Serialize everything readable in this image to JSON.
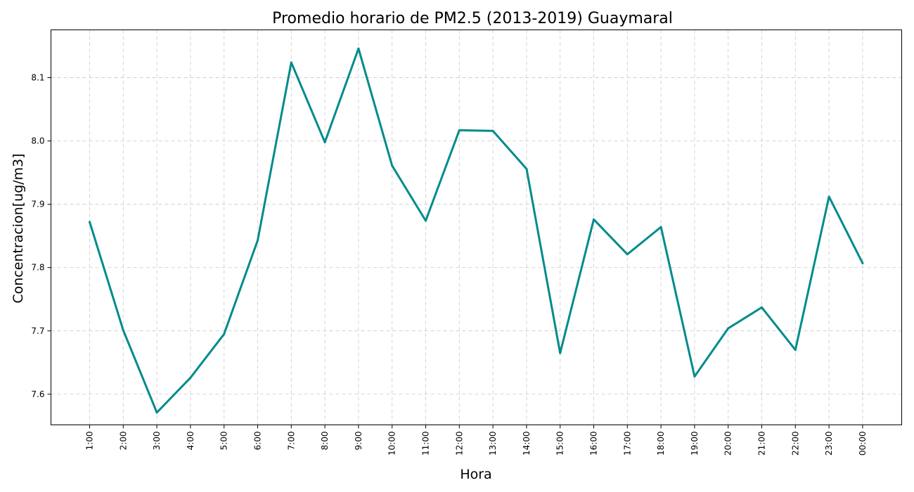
{
  "chart_data": {
    "type": "line",
    "title": "Promedio horario de PM2.5 (2013-2019) Guaymaral",
    "xlabel": "Hora",
    "ylabel": "Concentracion[ug/m3]",
    "categories": [
      "1:00",
      "2:00",
      "3:00",
      "4:00",
      "5:00",
      "6:00",
      "7:00",
      "8:00",
      "9:00",
      "10:00",
      "11:00",
      "12:00",
      "13:00",
      "14:00",
      "15:00",
      "16:00",
      "17:00",
      "18:00",
      "19:00",
      "20:00",
      "21:00",
      "22:00",
      "23:00",
      "00:00"
    ],
    "series": [
      {
        "values": [
          7.872,
          7.701,
          7.571,
          7.626,
          7.695,
          7.843,
          8.124,
          7.998,
          8.146,
          7.961,
          7.874,
          8.017,
          8.016,
          7.956,
          7.665,
          7.876,
          7.821,
          7.864,
          7.628,
          7.704,
          7.737,
          7.67,
          7.912,
          7.807
        ],
        "color": "#008b8b"
      }
    ],
    "ylim": [
      7.5515,
      8.1755
    ],
    "yticks": [
      7.6,
      7.7,
      7.8,
      7.9,
      8.0,
      8.1
    ],
    "ytick_labels": [
      "7.6",
      "7.7",
      "7.8",
      "7.9",
      "8.0",
      "8.1"
    ],
    "grid": true,
    "x_tick_rotation": "vertical",
    "legend": "none"
  }
}
